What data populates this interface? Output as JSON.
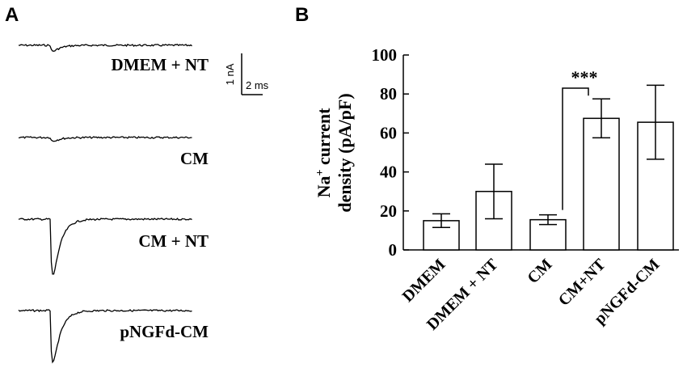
{
  "panel_a": {
    "letter": "A",
    "traces": [
      {
        "label": "DMEM + NT",
        "peak": 0.1
      },
      {
        "label": "CM",
        "peak": 0.06
      },
      {
        "label": "CM + NT",
        "peak": 0.95
      },
      {
        "label": "pNGFd-CM",
        "peak": 0.88
      }
    ],
    "scale_bar": {
      "y_label": "1 nA",
      "x_label": "2 ms"
    }
  },
  "panel_b": {
    "letter": "B"
  },
  "chart_data": {
    "type": "bar",
    "categories": [
      "DMEM",
      "DMEM + NT",
      "CM",
      "CM+NT",
      "pNGFd-CM"
    ],
    "values": [
      15,
      30,
      15.5,
      67.5,
      65.5
    ],
    "errors": [
      3.5,
      14,
      2.5,
      10,
      19
    ],
    "ylabel_line1": "Na",
    "ylabel_sup": "+",
    "ylabel_line1_rest": " current",
    "ylabel_line2": "density (pA/pF)",
    "ylim": [
      0,
      100
    ],
    "yticks": [
      0,
      20,
      40,
      60,
      80,
      100
    ],
    "significance": {
      "from": "CM",
      "to": "CM+NT",
      "label": "***"
    }
  }
}
